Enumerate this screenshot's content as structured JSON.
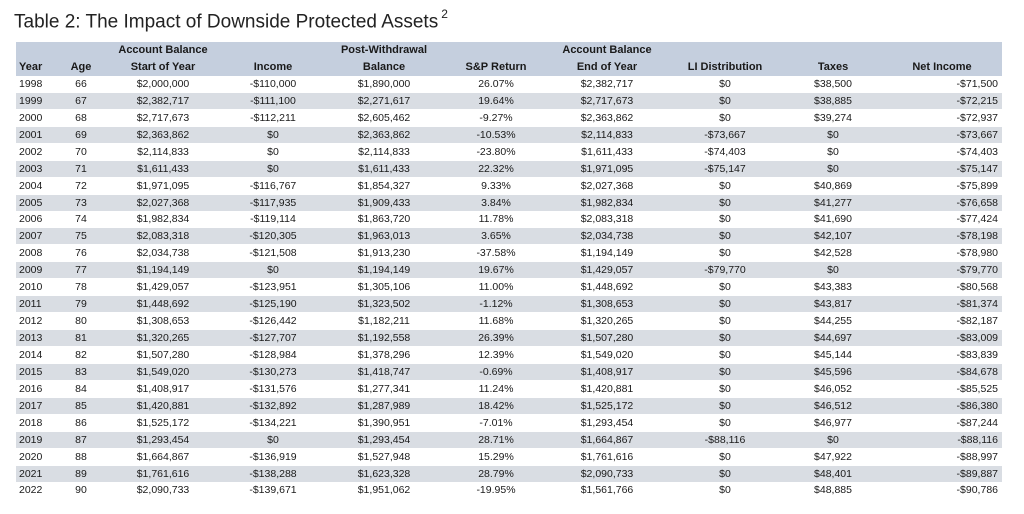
{
  "title": "Table 2: The Impact of Downside Protected Assets",
  "footnote": "2",
  "headers_top": {
    "balance_start": "Account Balance",
    "post_withdrawal": "Post-Withdrawal",
    "balance_end": "Account Balance"
  },
  "headers": {
    "year": "Year",
    "age": "Age",
    "balance_start": "Start of Year",
    "income": "Income",
    "post_withdrawal": "Balance",
    "sp_return": "S&P Return",
    "balance_end": "End of Year",
    "li_distribution": "LI Distribution",
    "taxes": "Taxes",
    "net_income": "Net Income"
  },
  "rows": [
    [
      "1998",
      "66",
      "$2,000,000",
      "-$110,000",
      "$1,890,000",
      "26.07%",
      "$2,382,717",
      "$0",
      "$38,500",
      "-$71,500"
    ],
    [
      "1999",
      "67",
      "$2,382,717",
      "-$111,100",
      "$2,271,617",
      "19.64%",
      "$2,717,673",
      "$0",
      "$38,885",
      "-$72,215"
    ],
    [
      "2000",
      "68",
      "$2,717,673",
      "-$112,211",
      "$2,605,462",
      "-9.27%",
      "$2,363,862",
      "$0",
      "$39,274",
      "-$72,937"
    ],
    [
      "2001",
      "69",
      "$2,363,862",
      "$0",
      "$2,363,862",
      "-10.53%",
      "$2,114,833",
      "-$73,667",
      "$0",
      "-$73,667"
    ],
    [
      "2002",
      "70",
      "$2,114,833",
      "$0",
      "$2,114,833",
      "-23.80%",
      "$1,611,433",
      "-$74,403",
      "$0",
      "-$74,403"
    ],
    [
      "2003",
      "71",
      "$1,611,433",
      "$0",
      "$1,611,433",
      "22.32%",
      "$1,971,095",
      "-$75,147",
      "$0",
      "-$75,147"
    ],
    [
      "2004",
      "72",
      "$1,971,095",
      "-$116,767",
      "$1,854,327",
      "9.33%",
      "$2,027,368",
      "$0",
      "$40,869",
      "-$75,899"
    ],
    [
      "2005",
      "73",
      "$2,027,368",
      "-$117,935",
      "$1,909,433",
      "3.84%",
      "$1,982,834",
      "$0",
      "$41,277",
      "-$76,658"
    ],
    [
      "2006",
      "74",
      "$1,982,834",
      "-$119,114",
      "$1,863,720",
      "11.78%",
      "$2,083,318",
      "$0",
      "$41,690",
      "-$77,424"
    ],
    [
      "2007",
      "75",
      "$2,083,318",
      "-$120,305",
      "$1,963,013",
      "3.65%",
      "$2,034,738",
      "$0",
      "$42,107",
      "-$78,198"
    ],
    [
      "2008",
      "76",
      "$2,034,738",
      "-$121,508",
      "$1,913,230",
      "-37.58%",
      "$1,194,149",
      "$0",
      "$42,528",
      "-$78,980"
    ],
    [
      "2009",
      "77",
      "$1,194,149",
      "$0",
      "$1,194,149",
      "19.67%",
      "$1,429,057",
      "-$79,770",
      "$0",
      "-$79,770"
    ],
    [
      "2010",
      "78",
      "$1,429,057",
      "-$123,951",
      "$1,305,106",
      "11.00%",
      "$1,448,692",
      "$0",
      "$43,383",
      "-$80,568"
    ],
    [
      "2011",
      "79",
      "$1,448,692",
      "-$125,190",
      "$1,323,502",
      "-1.12%",
      "$1,308,653",
      "$0",
      "$43,817",
      "-$81,374"
    ],
    [
      "2012",
      "80",
      "$1,308,653",
      "-$126,442",
      "$1,182,211",
      "11.68%",
      "$1,320,265",
      "$0",
      "$44,255",
      "-$82,187"
    ],
    [
      "2013",
      "81",
      "$1,320,265",
      "-$127,707",
      "$1,192,558",
      "26.39%",
      "$1,507,280",
      "$0",
      "$44,697",
      "-$83,009"
    ],
    [
      "2014",
      "82",
      "$1,507,280",
      "-$128,984",
      "$1,378,296",
      "12.39%",
      "$1,549,020",
      "$0",
      "$45,144",
      "-$83,839"
    ],
    [
      "2015",
      "83",
      "$1,549,020",
      "-$130,273",
      "$1,418,747",
      "-0.69%",
      "$1,408,917",
      "$0",
      "$45,596",
      "-$84,678"
    ],
    [
      "2016",
      "84",
      "$1,408,917",
      "-$131,576",
      "$1,277,341",
      "11.24%",
      "$1,420,881",
      "$0",
      "$46,052",
      "-$85,525"
    ],
    [
      "2017",
      "85",
      "$1,420,881",
      "-$132,892",
      "$1,287,989",
      "18.42%",
      "$1,525,172",
      "$0",
      "$46,512",
      "-$86,380"
    ],
    [
      "2018",
      "86",
      "$1,525,172",
      "-$134,221",
      "$1,390,951",
      "-7.01%",
      "$1,293,454",
      "$0",
      "$46,977",
      "-$87,244"
    ],
    [
      "2019",
      "87",
      "$1,293,454",
      "$0",
      "$1,293,454",
      "28.71%",
      "$1,664,867",
      "-$88,116",
      "$0",
      "-$88,116"
    ],
    [
      "2020",
      "88",
      "$1,664,867",
      "-$136,919",
      "$1,527,948",
      "15.29%",
      "$1,761,616",
      "$0",
      "$47,922",
      "-$88,997"
    ],
    [
      "2021",
      "89",
      "$1,761,616",
      "-$138,288",
      "$1,623,328",
      "28.79%",
      "$2,090,733",
      "$0",
      "$48,401",
      "-$89,887"
    ],
    [
      "2022",
      "90",
      "$2,090,733",
      "-$139,671",
      "$1,951,062",
      "-19.95%",
      "$1,561,766",
      "$0",
      "$48,885",
      "-$90,786"
    ]
  ]
}
